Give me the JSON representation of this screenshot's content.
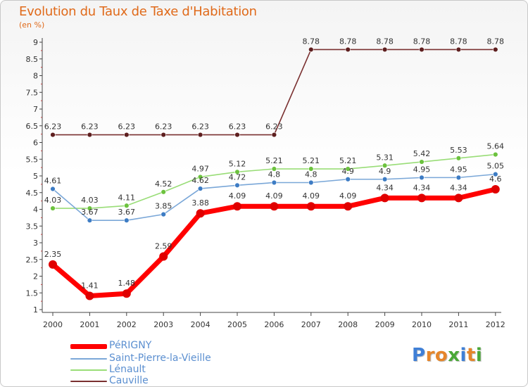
{
  "title": "Evolution du Taux de Taxe d'Habitation",
  "subtitle": "(en %)",
  "logo": {
    "text": "Proxiti",
    "letters": [
      "P",
      "r",
      "o",
      "x",
      "i",
      "t",
      "i"
    ],
    "colors": [
      "#3f7fd6",
      "#e6862a",
      "#e6862a",
      "#4aa838",
      "#3f7fd6",
      "#e6862a",
      "#4aa838"
    ]
  },
  "chart_data": {
    "type": "line",
    "title": "Evolution du Taux de Taxe d'Habitation",
    "ylabel": "(en %)",
    "xlabel": "",
    "categories": [
      "2000",
      "2001",
      "2002",
      "2003",
      "2004",
      "2005",
      "2006",
      "2007",
      "2008",
      "2009",
      "2010",
      "2011",
      "2012"
    ],
    "ylim": [
      1,
      9
    ],
    "yticks": [
      "1",
      "1.5",
      "2",
      "2.5",
      "3",
      "3.5",
      "4",
      "4.5",
      "5",
      "5.5",
      "6",
      "6.5",
      "7",
      "7.5",
      "8",
      "8.5",
      "9"
    ],
    "ytick_values": [
      1,
      1.5,
      2,
      2.5,
      3,
      3.5,
      4,
      4.5,
      5,
      5.5,
      6,
      6.5,
      7,
      7.5,
      8,
      8.5,
      9
    ],
    "grid": false,
    "legend_position": "bottom-left",
    "series": [
      {
        "name": "Cauville",
        "color": "#7a3030",
        "marker_color": "#5e1f1f",
        "values": [
          6.23,
          6.23,
          6.23,
          6.23,
          6.23,
          6.23,
          6.23,
          8.78,
          8.78,
          8.78,
          8.78,
          8.78,
          8.78
        ],
        "labels": [
          "6.23",
          "6.23",
          "6.23",
          "6.23",
          "6.23",
          "6.23",
          "6.23",
          "8.78",
          "8.78",
          "8.78",
          "8.78",
          "8.78",
          "8.78"
        ]
      },
      {
        "name": "Lénault",
        "color": "#99dd77",
        "marker_color": "#6cc23e",
        "values": [
          4.03,
          4.03,
          4.11,
          4.52,
          4.97,
          5.12,
          5.21,
          5.21,
          5.21,
          5.31,
          5.42,
          5.53,
          5.64
        ],
        "labels": [
          "4.03",
          "4.03",
          "4.11",
          "4.52",
          "4.97",
          "5.12",
          "5.21",
          "5.21",
          "5.21",
          "5.31",
          "5.42",
          "5.53",
          "5.64"
        ]
      },
      {
        "name": "Saint-Pierre-la-Vieille",
        "color": "#7aa7d8",
        "marker_color": "#3d7cc4",
        "values": [
          4.61,
          3.67,
          3.67,
          3.85,
          4.62,
          4.72,
          4.8,
          4.8,
          4.9,
          4.9,
          4.95,
          4.95,
          5.05
        ],
        "labels": [
          "4.61",
          "3.67",
          "3.67",
          "3.85",
          "4.62",
          "4.72",
          "4.8",
          "4.8",
          "4.9",
          "4.9",
          "4.95",
          "4.95",
          "5.05"
        ]
      },
      {
        "name": "PéRIGNY",
        "color": "#ff0000",
        "marker_color": "#e00000",
        "values": [
          2.35,
          1.41,
          1.48,
          2.59,
          3.88,
          4.09,
          4.09,
          4.09,
          4.09,
          4.34,
          4.34,
          4.34,
          4.6
        ],
        "labels": [
          "2.35",
          "1.41",
          "1.48",
          "2.59",
          "3.88",
          "4.09",
          "4.09",
          "4.09",
          "4.09",
          "4.34",
          "4.34",
          "4.34",
          "4.6"
        ]
      }
    ],
    "legend_order": [
      "PéRIGNY",
      "Saint-Pierre-la-Vieille",
      "Lénault",
      "Cauville"
    ]
  },
  "legend": [
    {
      "label": "PéRIGNY",
      "color": "#ff0000"
    },
    {
      "label": "Saint-Pierre-la-Vieille",
      "color": "#7aa7d8"
    },
    {
      "label": "Lénault",
      "color": "#99dd77"
    },
    {
      "label": "Cauville",
      "color": "#7a3030"
    }
  ]
}
